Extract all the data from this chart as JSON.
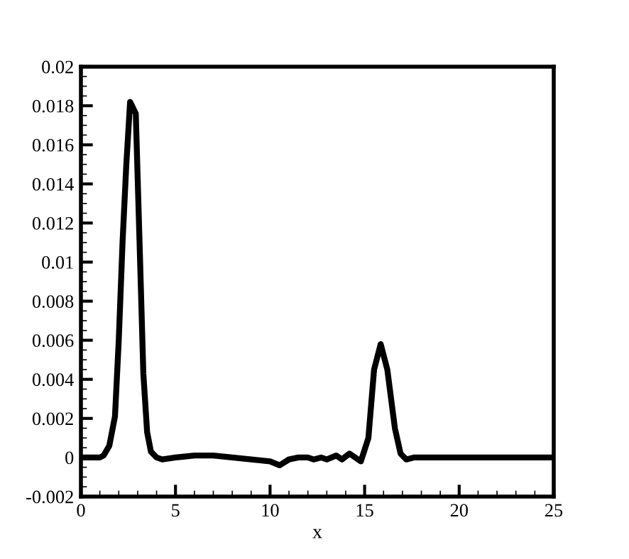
{
  "chart_data": {
    "type": "line",
    "xlabel": "x",
    "color": "#000000",
    "x": [
      0,
      0.5,
      1,
      1.2,
      1.5,
      1.8,
      2.0,
      2.2,
      2.4,
      2.6,
      2.9,
      3.1,
      3.3,
      3.5,
      3.7,
      4.0,
      4.3,
      5,
      6,
      7,
      8,
      9,
      10,
      10.5,
      11,
      11.5,
      12,
      12.3,
      12.7,
      13,
      13.5,
      13.8,
      14.2,
      14.5,
      14.8,
      15.2,
      15.5,
      15.85,
      16.2,
      16.6,
      16.9,
      17.2,
      17.6,
      18,
      19,
      20,
      22,
      25
    ],
    "values": [
      0,
      0,
      0,
      0.0001,
      0.0006,
      0.0021,
      0.006,
      0.011,
      0.015,
      0.0182,
      0.0176,
      0.011,
      0.0043,
      0.0013,
      0.0003,
      0,
      -0.0001,
      0,
      0.0001,
      0.0001,
      0,
      -0.0001,
      -0.0002,
      -0.0004,
      -0.0001,
      0,
      0,
      -0.0001,
      0,
      -0.0001,
      0.0001,
      -0.0001,
      0.0002,
      0,
      -0.0002,
      0.001,
      0.0045,
      0.0058,
      0.0045,
      0.0015,
      0.0002,
      -0.0001,
      0,
      0,
      0,
      0,
      0,
      0
    ],
    "xlim": [
      0,
      25
    ],
    "xticks": [
      0,
      5,
      10,
      15,
      20,
      25
    ],
    "ylim": [
      -0.002,
      0.02
    ],
    "yticks": [
      -0.002,
      0,
      0.002,
      0.004,
      0.006,
      0.008,
      0.01,
      0.012,
      0.014,
      0.016,
      0.018,
      0.02
    ],
    "grid": false,
    "legend": false,
    "marker": "none",
    "line_style": "solid"
  }
}
